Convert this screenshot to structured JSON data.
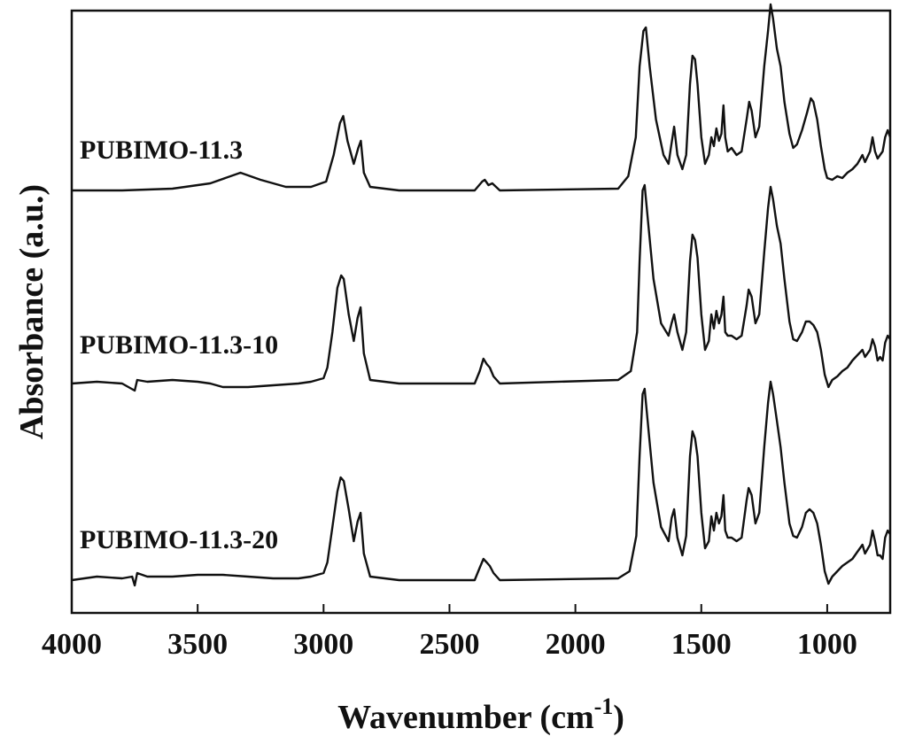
{
  "chart_data": {
    "type": "line",
    "title": "",
    "xlabel": "Wavenumber (cm",
    "xlabel_sup": "-1",
    "xlabel_close": ")",
    "ylabel": "Absorbance (a.u.)",
    "xlim": [
      4000,
      750
    ],
    "x_reversed": true,
    "x_ticks": [
      4000,
      3500,
      3000,
      2500,
      2000,
      1500,
      1000
    ],
    "x_tick_labels": [
      "4000",
      "3500",
      "3000",
      "2500",
      "2000",
      "1500",
      "1000"
    ],
    "y_tick_labels": false,
    "grid": false,
    "legend": "none",
    "series": [
      {
        "name": "PUBIMO-11.3",
        "offset": 2.2,
        "points": [
          [
            4000,
            0.0
          ],
          [
            3800,
            0.0
          ],
          [
            3600,
            0.01
          ],
          [
            3450,
            0.04
          ],
          [
            3330,
            0.1
          ],
          [
            3250,
            0.06
          ],
          [
            3150,
            0.02
          ],
          [
            3050,
            0.02
          ],
          [
            2990,
            0.05
          ],
          [
            2960,
            0.2
          ],
          [
            2935,
            0.38
          ],
          [
            2922,
            0.42
          ],
          [
            2905,
            0.28
          ],
          [
            2880,
            0.15
          ],
          [
            2862,
            0.24
          ],
          [
            2852,
            0.28
          ],
          [
            2840,
            0.1
          ],
          [
            2815,
            0.02
          ],
          [
            2700,
            0.0
          ],
          [
            2400,
            0.0
          ],
          [
            2370,
            0.05
          ],
          [
            2360,
            0.06
          ],
          [
            2345,
            0.03
          ],
          [
            2330,
            0.04
          ],
          [
            2300,
            0.0
          ],
          [
            1830,
            0.01
          ],
          [
            1790,
            0.08
          ],
          [
            1760,
            0.3
          ],
          [
            1745,
            0.7
          ],
          [
            1730,
            0.9
          ],
          [
            1720,
            0.92
          ],
          [
            1705,
            0.7
          ],
          [
            1680,
            0.4
          ],
          [
            1650,
            0.2
          ],
          [
            1630,
            0.15
          ],
          [
            1620,
            0.25
          ],
          [
            1608,
            0.36
          ],
          [
            1595,
            0.2
          ],
          [
            1575,
            0.12
          ],
          [
            1560,
            0.2
          ],
          [
            1545,
            0.6
          ],
          [
            1535,
            0.76
          ],
          [
            1525,
            0.74
          ],
          [
            1515,
            0.6
          ],
          [
            1500,
            0.3
          ],
          [
            1485,
            0.15
          ],
          [
            1470,
            0.2
          ],
          [
            1460,
            0.3
          ],
          [
            1450,
            0.25
          ],
          [
            1440,
            0.35
          ],
          [
            1430,
            0.28
          ],
          [
            1420,
            0.32
          ],
          [
            1412,
            0.48
          ],
          [
            1405,
            0.3
          ],
          [
            1395,
            0.22
          ],
          [
            1380,
            0.24
          ],
          [
            1360,
            0.2
          ],
          [
            1340,
            0.22
          ],
          [
            1320,
            0.4
          ],
          [
            1310,
            0.5
          ],
          [
            1300,
            0.45
          ],
          [
            1285,
            0.3
          ],
          [
            1270,
            0.36
          ],
          [
            1250,
            0.7
          ],
          [
            1235,
            0.9
          ],
          [
            1225,
            1.05
          ],
          [
            1215,
            0.97
          ],
          [
            1200,
            0.8
          ],
          [
            1185,
            0.7
          ],
          [
            1170,
            0.5
          ],
          [
            1150,
            0.32
          ],
          [
            1135,
            0.24
          ],
          [
            1120,
            0.26
          ],
          [
            1100,
            0.34
          ],
          [
            1080,
            0.44
          ],
          [
            1065,
            0.52
          ],
          [
            1055,
            0.5
          ],
          [
            1040,
            0.4
          ],
          [
            1025,
            0.25
          ],
          [
            1010,
            0.12
          ],
          [
            1000,
            0.07
          ],
          [
            980,
            0.06
          ],
          [
            960,
            0.08
          ],
          [
            940,
            0.07
          ],
          [
            920,
            0.1
          ],
          [
            900,
            0.12
          ],
          [
            880,
            0.15
          ],
          [
            860,
            0.2
          ],
          [
            850,
            0.16
          ],
          [
            830,
            0.22
          ],
          [
            820,
            0.3
          ],
          [
            810,
            0.22
          ],
          [
            800,
            0.18
          ],
          [
            790,
            0.2
          ],
          [
            780,
            0.22
          ],
          [
            770,
            0.3
          ],
          [
            760,
            0.34
          ],
          [
            750,
            0.3
          ]
        ]
      },
      {
        "name": "PUBIMO-11.3-10",
        "offset": 1.1,
        "points": [
          [
            4000,
            0.01
          ],
          [
            3900,
            0.02
          ],
          [
            3800,
            0.01
          ],
          [
            3750,
            -0.03
          ],
          [
            3740,
            0.03
          ],
          [
            3700,
            0.02
          ],
          [
            3600,
            0.03
          ],
          [
            3500,
            0.02
          ],
          [
            3450,
            0.01
          ],
          [
            3400,
            -0.01
          ],
          [
            3300,
            -0.01
          ],
          [
            3200,
            0.0
          ],
          [
            3100,
            0.01
          ],
          [
            3050,
            0.02
          ],
          [
            3000,
            0.04
          ],
          [
            2985,
            0.1
          ],
          [
            2965,
            0.3
          ],
          [
            2945,
            0.55
          ],
          [
            2930,
            0.62
          ],
          [
            2920,
            0.6
          ],
          [
            2900,
            0.4
          ],
          [
            2880,
            0.25
          ],
          [
            2865,
            0.38
          ],
          [
            2853,
            0.44
          ],
          [
            2840,
            0.18
          ],
          [
            2815,
            0.03
          ],
          [
            2700,
            0.01
          ],
          [
            2400,
            0.01
          ],
          [
            2380,
            0.08
          ],
          [
            2365,
            0.15
          ],
          [
            2352,
            0.12
          ],
          [
            2340,
            0.1
          ],
          [
            2325,
            0.05
          ],
          [
            2300,
            0.01
          ],
          [
            1830,
            0.03
          ],
          [
            1780,
            0.08
          ],
          [
            1755,
            0.3
          ],
          [
            1745,
            0.7
          ],
          [
            1733,
            1.1
          ],
          [
            1725,
            1.13
          ],
          [
            1710,
            0.9
          ],
          [
            1690,
            0.6
          ],
          [
            1660,
            0.35
          ],
          [
            1630,
            0.28
          ],
          [
            1618,
            0.35
          ],
          [
            1608,
            0.4
          ],
          [
            1595,
            0.3
          ],
          [
            1575,
            0.2
          ],
          [
            1560,
            0.3
          ],
          [
            1545,
            0.7
          ],
          [
            1535,
            0.85
          ],
          [
            1525,
            0.82
          ],
          [
            1515,
            0.72
          ],
          [
            1500,
            0.4
          ],
          [
            1485,
            0.2
          ],
          [
            1470,
            0.25
          ],
          [
            1460,
            0.4
          ],
          [
            1450,
            0.32
          ],
          [
            1440,
            0.42
          ],
          [
            1430,
            0.35
          ],
          [
            1420,
            0.4
          ],
          [
            1412,
            0.5
          ],
          [
            1405,
            0.3
          ],
          [
            1395,
            0.28
          ],
          [
            1380,
            0.28
          ],
          [
            1360,
            0.26
          ],
          [
            1340,
            0.28
          ],
          [
            1320,
            0.45
          ],
          [
            1312,
            0.54
          ],
          [
            1300,
            0.5
          ],
          [
            1285,
            0.35
          ],
          [
            1270,
            0.4
          ],
          [
            1250,
            0.75
          ],
          [
            1235,
            1.0
          ],
          [
            1225,
            1.12
          ],
          [
            1215,
            1.05
          ],
          [
            1200,
            0.9
          ],
          [
            1185,
            0.8
          ],
          [
            1170,
            0.6
          ],
          [
            1150,
            0.36
          ],
          [
            1135,
            0.26
          ],
          [
            1120,
            0.25
          ],
          [
            1100,
            0.3
          ],
          [
            1085,
            0.36
          ],
          [
            1070,
            0.36
          ],
          [
            1055,
            0.34
          ],
          [
            1040,
            0.3
          ],
          [
            1025,
            0.2
          ],
          [
            1010,
            0.06
          ],
          [
            995,
            -0.01
          ],
          [
            980,
            0.03
          ],
          [
            960,
            0.05
          ],
          [
            940,
            0.08
          ],
          [
            920,
            0.1
          ],
          [
            900,
            0.14
          ],
          [
            880,
            0.17
          ],
          [
            860,
            0.2
          ],
          [
            850,
            0.16
          ],
          [
            830,
            0.2
          ],
          [
            820,
            0.26
          ],
          [
            810,
            0.22
          ],
          [
            800,
            0.14
          ],
          [
            790,
            0.16
          ],
          [
            780,
            0.14
          ],
          [
            770,
            0.24
          ],
          [
            760,
            0.28
          ],
          [
            750,
            0.26
          ]
        ]
      },
      {
        "name": "PUBIMO-11.3-20",
        "offset": 0.0,
        "points": [
          [
            4000,
            0.0
          ],
          [
            3900,
            0.02
          ],
          [
            3800,
            0.01
          ],
          [
            3760,
            0.02
          ],
          [
            3750,
            -0.03
          ],
          [
            3740,
            0.04
          ],
          [
            3700,
            0.02
          ],
          [
            3600,
            0.02
          ],
          [
            3500,
            0.03
          ],
          [
            3400,
            0.03
          ],
          [
            3300,
            0.02
          ],
          [
            3200,
            0.01
          ],
          [
            3100,
            0.01
          ],
          [
            3050,
            0.02
          ],
          [
            3000,
            0.04
          ],
          [
            2985,
            0.1
          ],
          [
            2965,
            0.3
          ],
          [
            2945,
            0.5
          ],
          [
            2932,
            0.58
          ],
          [
            2920,
            0.56
          ],
          [
            2900,
            0.4
          ],
          [
            2880,
            0.22
          ],
          [
            2865,
            0.33
          ],
          [
            2853,
            0.38
          ],
          [
            2840,
            0.15
          ],
          [
            2815,
            0.02
          ],
          [
            2700,
            0.0
          ],
          [
            2400,
            0.0
          ],
          [
            2380,
            0.07
          ],
          [
            2365,
            0.12
          ],
          [
            2352,
            0.1
          ],
          [
            2340,
            0.08
          ],
          [
            2325,
            0.04
          ],
          [
            2300,
            0.0
          ],
          [
            1830,
            0.01
          ],
          [
            1785,
            0.05
          ],
          [
            1758,
            0.25
          ],
          [
            1745,
            0.7
          ],
          [
            1733,
            1.05
          ],
          [
            1725,
            1.08
          ],
          [
            1710,
            0.85
          ],
          [
            1690,
            0.55
          ],
          [
            1660,
            0.3
          ],
          [
            1630,
            0.22
          ],
          [
            1618,
            0.35
          ],
          [
            1608,
            0.4
          ],
          [
            1595,
            0.24
          ],
          [
            1575,
            0.14
          ],
          [
            1560,
            0.25
          ],
          [
            1545,
            0.7
          ],
          [
            1535,
            0.84
          ],
          [
            1525,
            0.8
          ],
          [
            1515,
            0.7
          ],
          [
            1500,
            0.38
          ],
          [
            1485,
            0.18
          ],
          [
            1470,
            0.22
          ],
          [
            1460,
            0.36
          ],
          [
            1450,
            0.28
          ],
          [
            1440,
            0.38
          ],
          [
            1430,
            0.32
          ],
          [
            1420,
            0.36
          ],
          [
            1412,
            0.48
          ],
          [
            1405,
            0.28
          ],
          [
            1395,
            0.24
          ],
          [
            1380,
            0.24
          ],
          [
            1360,
            0.22
          ],
          [
            1340,
            0.24
          ],
          [
            1320,
            0.45
          ],
          [
            1312,
            0.52
          ],
          [
            1300,
            0.48
          ],
          [
            1285,
            0.32
          ],
          [
            1270,
            0.38
          ],
          [
            1250,
            0.75
          ],
          [
            1235,
            1.0
          ],
          [
            1225,
            1.12
          ],
          [
            1215,
            1.05
          ],
          [
            1200,
            0.9
          ],
          [
            1185,
            0.75
          ],
          [
            1170,
            0.55
          ],
          [
            1150,
            0.32
          ],
          [
            1135,
            0.25
          ],
          [
            1120,
            0.24
          ],
          [
            1100,
            0.3
          ],
          [
            1085,
            0.38
          ],
          [
            1070,
            0.4
          ],
          [
            1055,
            0.38
          ],
          [
            1040,
            0.32
          ],
          [
            1025,
            0.2
          ],
          [
            1010,
            0.05
          ],
          [
            995,
            -0.02
          ],
          [
            980,
            0.02
          ],
          [
            960,
            0.05
          ],
          [
            940,
            0.08
          ],
          [
            920,
            0.1
          ],
          [
            900,
            0.12
          ],
          [
            880,
            0.16
          ],
          [
            860,
            0.2
          ],
          [
            850,
            0.15
          ],
          [
            830,
            0.2
          ],
          [
            820,
            0.28
          ],
          [
            810,
            0.22
          ],
          [
            800,
            0.14
          ],
          [
            790,
            0.14
          ],
          [
            780,
            0.12
          ],
          [
            770,
            0.24
          ],
          [
            760,
            0.28
          ],
          [
            750,
            0.26
          ]
        ]
      }
    ]
  }
}
